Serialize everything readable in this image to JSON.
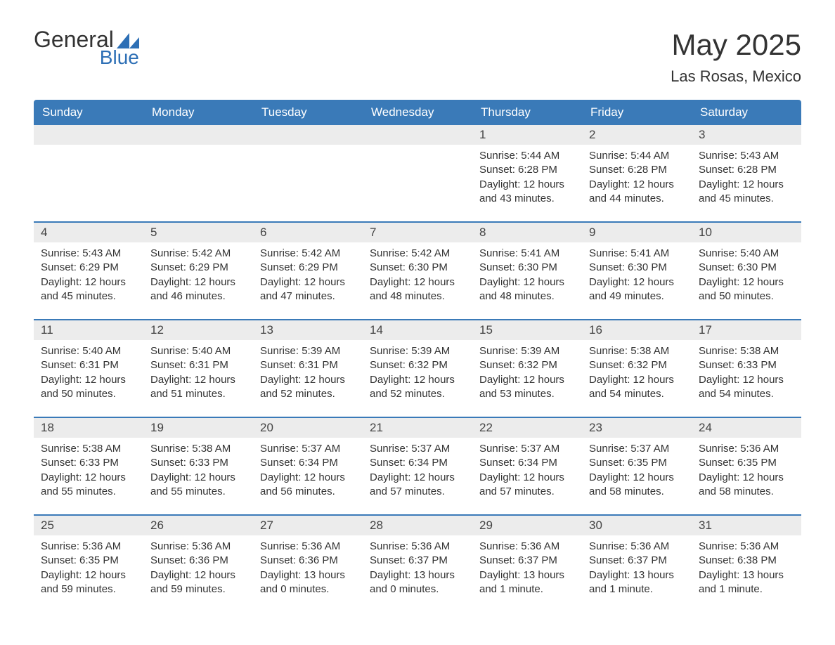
{
  "logo": {
    "text_top": "General",
    "text_bottom": "Blue",
    "accent_color": "#2d6fb5"
  },
  "title": "May 2025",
  "location": "Las Rosas, Mexico",
  "colors": {
    "header_bg": "#3a7ab8",
    "header_text": "#ffffff",
    "daynum_bg": "#ececec",
    "row_border": "#3a7ab8",
    "text": "#333333"
  },
  "day_headers": [
    "Sunday",
    "Monday",
    "Tuesday",
    "Wednesday",
    "Thursday",
    "Friday",
    "Saturday"
  ],
  "weeks": [
    [
      null,
      null,
      null,
      null,
      {
        "n": "1",
        "sunrise": "5:44 AM",
        "sunset": "6:28 PM",
        "daylight": "12 hours and 43 minutes."
      },
      {
        "n": "2",
        "sunrise": "5:44 AM",
        "sunset": "6:28 PM",
        "daylight": "12 hours and 44 minutes."
      },
      {
        "n": "3",
        "sunrise": "5:43 AM",
        "sunset": "6:28 PM",
        "daylight": "12 hours and 45 minutes."
      }
    ],
    [
      {
        "n": "4",
        "sunrise": "5:43 AM",
        "sunset": "6:29 PM",
        "daylight": "12 hours and 45 minutes."
      },
      {
        "n": "5",
        "sunrise": "5:42 AM",
        "sunset": "6:29 PM",
        "daylight": "12 hours and 46 minutes."
      },
      {
        "n": "6",
        "sunrise": "5:42 AM",
        "sunset": "6:29 PM",
        "daylight": "12 hours and 47 minutes."
      },
      {
        "n": "7",
        "sunrise": "5:42 AM",
        "sunset": "6:30 PM",
        "daylight": "12 hours and 48 minutes."
      },
      {
        "n": "8",
        "sunrise": "5:41 AM",
        "sunset": "6:30 PM",
        "daylight": "12 hours and 48 minutes."
      },
      {
        "n": "9",
        "sunrise": "5:41 AM",
        "sunset": "6:30 PM",
        "daylight": "12 hours and 49 minutes."
      },
      {
        "n": "10",
        "sunrise": "5:40 AM",
        "sunset": "6:30 PM",
        "daylight": "12 hours and 50 minutes."
      }
    ],
    [
      {
        "n": "11",
        "sunrise": "5:40 AM",
        "sunset": "6:31 PM",
        "daylight": "12 hours and 50 minutes."
      },
      {
        "n": "12",
        "sunrise": "5:40 AM",
        "sunset": "6:31 PM",
        "daylight": "12 hours and 51 minutes."
      },
      {
        "n": "13",
        "sunrise": "5:39 AM",
        "sunset": "6:31 PM",
        "daylight": "12 hours and 52 minutes."
      },
      {
        "n": "14",
        "sunrise": "5:39 AM",
        "sunset": "6:32 PM",
        "daylight": "12 hours and 52 minutes."
      },
      {
        "n": "15",
        "sunrise": "5:39 AM",
        "sunset": "6:32 PM",
        "daylight": "12 hours and 53 minutes."
      },
      {
        "n": "16",
        "sunrise": "5:38 AM",
        "sunset": "6:32 PM",
        "daylight": "12 hours and 54 minutes."
      },
      {
        "n": "17",
        "sunrise": "5:38 AM",
        "sunset": "6:33 PM",
        "daylight": "12 hours and 54 minutes."
      }
    ],
    [
      {
        "n": "18",
        "sunrise": "5:38 AM",
        "sunset": "6:33 PM",
        "daylight": "12 hours and 55 minutes."
      },
      {
        "n": "19",
        "sunrise": "5:38 AM",
        "sunset": "6:33 PM",
        "daylight": "12 hours and 55 minutes."
      },
      {
        "n": "20",
        "sunrise": "5:37 AM",
        "sunset": "6:34 PM",
        "daylight": "12 hours and 56 minutes."
      },
      {
        "n": "21",
        "sunrise": "5:37 AM",
        "sunset": "6:34 PM",
        "daylight": "12 hours and 57 minutes."
      },
      {
        "n": "22",
        "sunrise": "5:37 AM",
        "sunset": "6:34 PM",
        "daylight": "12 hours and 57 minutes."
      },
      {
        "n": "23",
        "sunrise": "5:37 AM",
        "sunset": "6:35 PM",
        "daylight": "12 hours and 58 minutes."
      },
      {
        "n": "24",
        "sunrise": "5:36 AM",
        "sunset": "6:35 PM",
        "daylight": "12 hours and 58 minutes."
      }
    ],
    [
      {
        "n": "25",
        "sunrise": "5:36 AM",
        "sunset": "6:35 PM",
        "daylight": "12 hours and 59 minutes."
      },
      {
        "n": "26",
        "sunrise": "5:36 AM",
        "sunset": "6:36 PM",
        "daylight": "12 hours and 59 minutes."
      },
      {
        "n": "27",
        "sunrise": "5:36 AM",
        "sunset": "6:36 PM",
        "daylight": "13 hours and 0 minutes."
      },
      {
        "n": "28",
        "sunrise": "5:36 AM",
        "sunset": "6:37 PM",
        "daylight": "13 hours and 0 minutes."
      },
      {
        "n": "29",
        "sunrise": "5:36 AM",
        "sunset": "6:37 PM",
        "daylight": "13 hours and 1 minute."
      },
      {
        "n": "30",
        "sunrise": "5:36 AM",
        "sunset": "6:37 PM",
        "daylight": "13 hours and 1 minute."
      },
      {
        "n": "31",
        "sunrise": "5:36 AM",
        "sunset": "6:38 PM",
        "daylight": "13 hours and 1 minute."
      }
    ]
  ],
  "labels": {
    "sunrise": "Sunrise: ",
    "sunset": "Sunset: ",
    "daylight": "Daylight: "
  }
}
